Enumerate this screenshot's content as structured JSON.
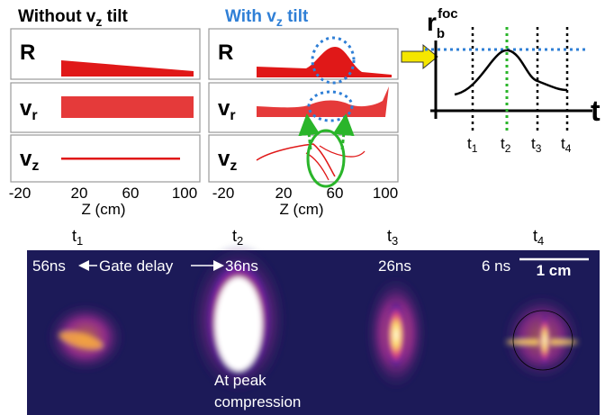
{
  "panels": [
    {
      "title": {
        "main": "Without v",
        "sub": "z",
        "rest": " tilt"
      },
      "row_labels": [
        {
          "main": "R"
        },
        {
          "main": "v",
          "sub": "r"
        },
        {
          "main": "v",
          "sub": "z"
        }
      ],
      "x_ticks": [
        -20,
        20,
        60,
        100
      ],
      "x_label": "Z (cm)"
    },
    {
      "title": {
        "main": "With v",
        "sub": "z",
        "rest": " tilt"
      },
      "row_labels": [
        {
          "main": "R"
        },
        {
          "main": "v",
          "sub": "r"
        },
        {
          "main": "v",
          "sub": "z"
        }
      ],
      "x_ticks": [
        -20,
        20,
        60,
        100
      ],
      "x_label": "Z (cm)"
    }
  ],
  "diagram": {
    "y_label": {
      "main": "r",
      "sub": "b",
      "sup": "foc"
    },
    "x_label": "t",
    "ticks": [
      {
        "main": "t",
        "sub": "1"
      },
      {
        "main": "t",
        "sub": "2"
      },
      {
        "main": "t",
        "sub": "3"
      },
      {
        "main": "t",
        "sub": "4"
      }
    ]
  },
  "frames": [
    {
      "label": {
        "main": "t",
        "sub": "1"
      },
      "delay": "56ns"
    },
    {
      "label": {
        "main": "t",
        "sub": "2"
      },
      "delay": "36ns"
    },
    {
      "label": {
        "main": "t",
        "sub": "3"
      },
      "delay": "26ns"
    },
    {
      "label": {
        "main": "t",
        "sub": "4"
      },
      "delay": "6 ns"
    }
  ],
  "gate_delay": "Gate delay",
  "scale_bar": "1 cm",
  "note": [
    "At peak",
    "compression"
  ]
}
